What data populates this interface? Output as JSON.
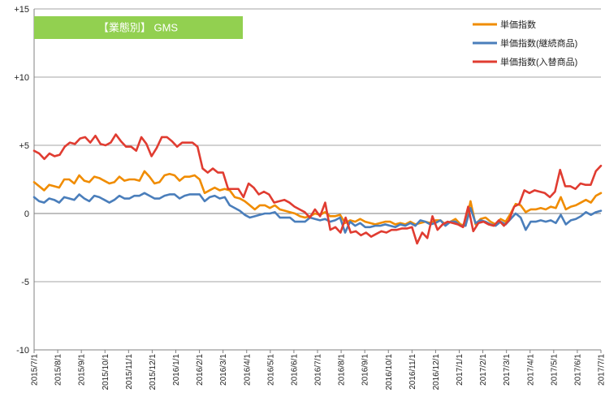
{
  "chart_data": {
    "type": "line",
    "title": "【業態別】 GMS",
    "xlabel": "",
    "ylabel": "",
    "ylim": [
      -10,
      15
    ],
    "yticks": [
      {
        "value": 15,
        "label": "+15"
      },
      {
        "value": 10,
        "label": "+10"
      },
      {
        "value": 5,
        "label": "+5"
      },
      {
        "value": 0,
        "label": "0"
      },
      {
        "value": -5,
        "label": "-5"
      },
      {
        "value": -10,
        "label": "-10"
      }
    ],
    "x_start": "2015/7/1",
    "x_end": "2017/7/1",
    "xtick_labels": [
      "2015/7/1",
      "2015/8/1",
      "2015/9/1",
      "2015/10/1",
      "2015/11/1",
      "2015/12/1",
      "2016/1/1",
      "2016/2/1",
      "2016/3/1",
      "2016/4/1",
      "2016/5/1",
      "2016/6/1",
      "2016/7/1",
      "2016/8/1",
      "2016/9/1",
      "2016/10/1",
      "2016/11/1",
      "2016/12/1",
      "2017/1/1",
      "2017/2/1",
      "2017/3/1",
      "2017/4/1",
      "2017/5/1",
      "2017/6/1",
      "2017/7/1"
    ],
    "grid": "horizontal",
    "legend_position": "top-right",
    "series": [
      {
        "name": "単価指数",
        "color": "#f08c00",
        "values": [
          2.3,
          2.0,
          1.7,
          2.1,
          2.0,
          1.9,
          2.5,
          2.5,
          2.2,
          2.8,
          2.4,
          2.3,
          2.7,
          2.6,
          2.4,
          2.2,
          2.3,
          2.7,
          2.4,
          2.5,
          2.5,
          2.4,
          3.1,
          2.7,
          2.2,
          2.3,
          2.8,
          2.9,
          2.8,
          2.4,
          2.7,
          2.7,
          2.8,
          2.5,
          1.5,
          1.7,
          1.9,
          1.7,
          1.8,
          1.7,
          1.2,
          1.1,
          0.9,
          0.6,
          0.3,
          0.6,
          0.6,
          0.4,
          0.6,
          0.3,
          0.2,
          0.1,
          0.0,
          -0.2,
          -0.3,
          -0.2,
          0.0,
          -0.1,
          0.1,
          -0.2,
          -0.2,
          -0.1,
          -0.7,
          -0.5,
          -0.6,
          -0.4,
          -0.6,
          -0.7,
          -0.8,
          -0.7,
          -0.6,
          -0.6,
          -0.8,
          -0.7,
          -0.8,
          -0.6,
          -0.8,
          -0.7,
          -0.6,
          -0.7,
          -0.5,
          -0.5,
          -0.8,
          -0.6,
          -0.4,
          -0.8,
          -0.9,
          0.9,
          -0.8,
          -0.4,
          -0.3,
          -0.6,
          -0.8,
          -0.4,
          -0.6,
          0.0,
          0.7,
          0.6,
          0.1,
          0.3,
          0.3,
          0.4,
          0.3,
          0.5,
          0.4,
          1.2,
          0.3,
          0.5,
          0.6,
          0.8,
          1.0,
          0.8,
          1.3,
          1.5
        ]
      },
      {
        "name": "単価指数(継続商品)",
        "color": "#4a7ebb",
        "values": [
          1.2,
          0.9,
          0.8,
          1.1,
          1.0,
          0.8,
          1.2,
          1.1,
          1.0,
          1.4,
          1.1,
          0.9,
          1.3,
          1.2,
          1.0,
          0.8,
          1.0,
          1.3,
          1.1,
          1.1,
          1.3,
          1.3,
          1.5,
          1.3,
          1.1,
          1.1,
          1.3,
          1.4,
          1.4,
          1.1,
          1.3,
          1.4,
          1.4,
          1.4,
          0.9,
          1.2,
          1.3,
          1.1,
          1.2,
          0.6,
          0.4,
          0.2,
          -0.1,
          -0.3,
          -0.2,
          -0.1,
          0.0,
          0.0,
          0.1,
          -0.3,
          -0.3,
          -0.3,
          -0.6,
          -0.6,
          -0.6,
          -0.3,
          -0.4,
          -0.5,
          -0.4,
          -0.6,
          -0.5,
          -0.3,
          -1.4,
          -0.6,
          -0.9,
          -0.7,
          -1.0,
          -1.0,
          -0.9,
          -0.9,
          -0.8,
          -0.9,
          -1.0,
          -0.8,
          -0.9,
          -0.7,
          -0.9,
          -0.5,
          -0.6,
          -0.8,
          -0.7,
          -0.5,
          -0.9,
          -0.6,
          -0.6,
          -0.9,
          -0.9,
          0.4,
          -0.7,
          -0.5,
          -0.6,
          -0.8,
          -0.9,
          -0.6,
          -0.8,
          -0.4,
          0.0,
          -0.3,
          -1.2,
          -0.6,
          -0.6,
          -0.5,
          -0.6,
          -0.5,
          -0.7,
          -0.1,
          -0.8,
          -0.5,
          -0.4,
          -0.2,
          0.1,
          -0.1,
          0.1,
          0.2
        ]
      },
      {
        "name": "単価指数(入替商品)",
        "color": "#e03c31",
        "values": [
          4.6,
          4.4,
          4.0,
          4.4,
          4.2,
          4.3,
          4.9,
          5.2,
          5.1,
          5.5,
          5.6,
          5.2,
          5.7,
          5.1,
          5.0,
          5.2,
          5.8,
          5.3,
          4.9,
          4.9,
          4.6,
          5.6,
          5.1,
          4.2,
          4.8,
          5.6,
          5.6,
          5.3,
          4.9,
          5.2,
          5.2,
          5.2,
          4.9,
          3.3,
          3.0,
          3.3,
          3.0,
          3.0,
          1.8,
          1.8,
          1.8,
          1.2,
          2.2,
          1.9,
          1.4,
          1.6,
          1.4,
          0.8,
          0.9,
          1.0,
          0.8,
          0.5,
          0.3,
          0.1,
          -0.3,
          0.3,
          -0.2,
          0.8,
          -1.2,
          -1.0,
          -1.4,
          -0.3,
          -1.4,
          -1.3,
          -1.6,
          -1.4,
          -1.7,
          -1.5,
          -1.3,
          -1.4,
          -1.2,
          -1.2,
          -1.1,
          -1.1,
          -1.0,
          -2.2,
          -1.4,
          -1.8,
          -0.2,
          -1.2,
          -0.8,
          -0.6,
          -0.7,
          -0.8,
          -1.0,
          0.5,
          -1.3,
          -0.7,
          -0.6,
          -0.8,
          -0.9,
          -0.5,
          -0.9,
          -0.5,
          0.5,
          0.7,
          1.7,
          1.5,
          1.7,
          1.6,
          1.5,
          1.2,
          1.6,
          3.2,
          2.0,
          2.0,
          1.8,
          2.2,
          2.1,
          2.1,
          3.1,
          3.5
        ]
      }
    ]
  }
}
